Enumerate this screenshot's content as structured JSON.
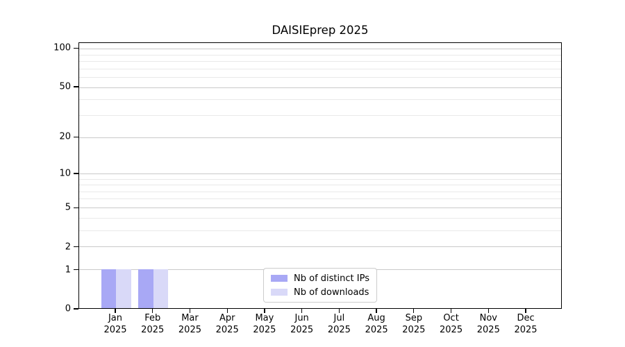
{
  "chart_data": {
    "type": "bar",
    "title": "DAISIEprep 2025",
    "categories": [
      "Jan",
      "Feb",
      "Mar",
      "Apr",
      "May",
      "Jun",
      "Jul",
      "Aug",
      "Sep",
      "Oct",
      "Nov",
      "Dec"
    ],
    "category_year": "2025",
    "series": [
      {
        "name": "Nb of distinct IPs",
        "color": "#a8a8f5",
        "values": [
          1,
          1,
          0,
          0,
          0,
          0,
          0,
          0,
          0,
          0,
          0,
          0
        ]
      },
      {
        "name": "Nb of downloads",
        "color": "#d9d9f8",
        "values": [
          1,
          1,
          0,
          0,
          0,
          0,
          0,
          0,
          0,
          0,
          0,
          0
        ]
      }
    ],
    "y_axis": {
      "scale": "log1p",
      "major_ticks": [
        0,
        1,
        2,
        5,
        10,
        20,
        50,
        100
      ],
      "minor_ticks": [
        3,
        4,
        6,
        7,
        8,
        9,
        30,
        40,
        60,
        70,
        80,
        90
      ],
      "ylim": [
        0,
        111
      ]
    },
    "x_axis": {
      "xlim_slots": [
        0.01,
        12.97
      ]
    },
    "legend": {
      "position": "lower center"
    },
    "grid": true,
    "colors": {
      "major_grid": "#c9c9c9",
      "minor_grid": "#e9e9e9",
      "spine": "#000000",
      "background": "#ffffff"
    }
  }
}
